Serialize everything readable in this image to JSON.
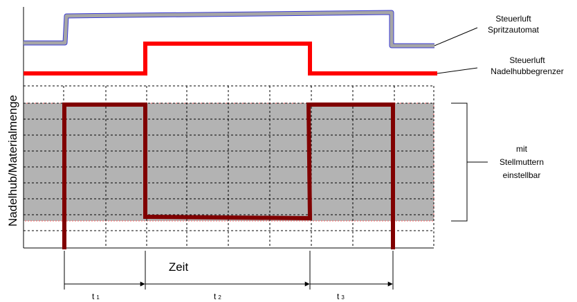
{
  "labels": {
    "steuerluft_spritz_line1": "Steuerluft",
    "steuerluft_spritz_line2": "Spritzautomat",
    "steuerluft_nadel_line1": "Steuerluft",
    "steuerluft_nadel_line2": "Nadelhubbegrenzer",
    "adjustable_line1": "mit",
    "adjustable_line2": "Stellmuttern",
    "adjustable_line3": "einstellbar",
    "y_axis": "Nadelhub/Materialmenge",
    "x_axis": "Zeit",
    "t1_main": "t",
    "t1_sub": "1",
    "t2_main": "t",
    "t2_sub": "2",
    "t3_main": "t",
    "t3_sub": "3"
  },
  "colors": {
    "spritz_signal_fill": "#a6a6a6",
    "spritz_signal_outline": "#3b3bd6",
    "nadel_signal": "#ff0000",
    "needle_trace": "#800000",
    "adjust_band": "#b3b3b3",
    "band_border": "#ff6666",
    "grid": "#000000"
  }
}
